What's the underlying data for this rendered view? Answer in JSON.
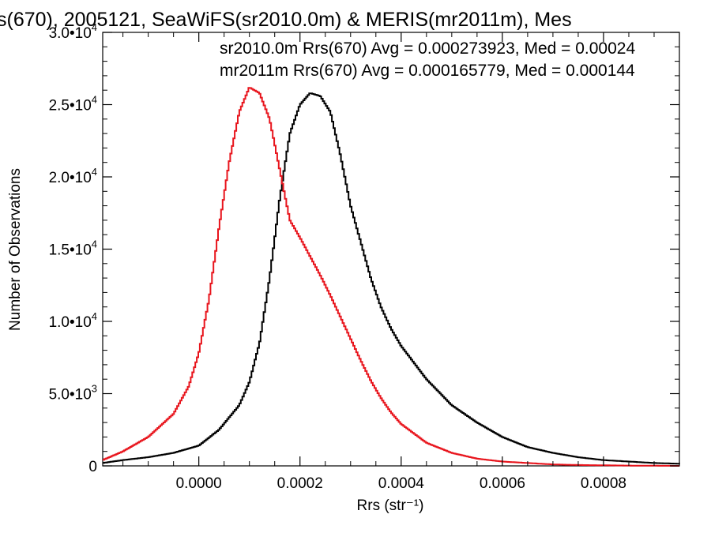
{
  "chart_data": {
    "type": "line",
    "title": "s(670), 2005121, SeaWiFS(sr2010.0m) & MERIS(mr2011m), Mes",
    "xlabel": "Rrs (str⁻¹)",
    "ylabel": "Number of Observations",
    "xlim": [
      -0.00019,
      0.00095
    ],
    "ylim": [
      0,
      30000
    ],
    "grid": false,
    "x_ticks": [
      0.0,
      0.0002,
      0.0004,
      0.0006,
      0.0008
    ],
    "x_tick_labels": [
      "0.0000",
      "0.0002",
      "0.0004",
      "0.0006",
      "0.0008"
    ],
    "y_ticks": [
      0,
      5000,
      10000,
      15000,
      20000,
      25000,
      30000
    ],
    "y_tick_labels": [
      {
        "mant": "0",
        "exp": ""
      },
      {
        "mant": "5.0•10",
        "exp": "3"
      },
      {
        "mant": "1.0•10",
        "exp": "4"
      },
      {
        "mant": "1.5•10",
        "exp": "4"
      },
      {
        "mant": "2.0•10",
        "exp": "4"
      },
      {
        "mant": "2.5•10",
        "exp": "4"
      },
      {
        "mant": "3.0•10",
        "exp": "4"
      }
    ],
    "annotations": [
      {
        "text": "sr2010.0m Rrs(670) Avg = 0.000273923, Med = 0.00024",
        "color": "#000000"
      },
      {
        "text": "mr2011m Rrs(670) Avg = 0.000165779, Med = 0.000144",
        "color": "#e8141c"
      }
    ],
    "series": [
      {
        "color": "#000000",
        "x": [
          -0.00019,
          -0.00015,
          -0.0001,
          -5e-05,
          0.0,
          4e-05,
          8e-05,
          0.0001,
          0.00012,
          0.00014,
          0.00016,
          0.00018,
          0.0002,
          0.00022,
          0.00024,
          0.00026,
          0.00028,
          0.0003,
          0.00032,
          0.00034,
          0.00036,
          0.00038,
          0.0004,
          0.00045,
          0.0005,
          0.00055,
          0.0006,
          0.00065,
          0.0007,
          0.00075,
          0.0008,
          0.00085,
          0.0009,
          0.00095
        ],
        "y": [
          200,
          400,
          600,
          900,
          1400,
          2500,
          4200,
          5800,
          8500,
          13000,
          18500,
          23000,
          25000,
          25800,
          25600,
          24500,
          21500,
          18000,
          15500,
          13000,
          11000,
          9500,
          8300,
          6000,
          4200,
          3000,
          2000,
          1300,
          900,
          600,
          400,
          300,
          200,
          150
        ]
      },
      {
        "color": "#e8141c",
        "x": [
          -0.00019,
          -0.00015,
          -0.0001,
          -5e-05,
          -2e-05,
          0.0,
          2e-05,
          4e-05,
          6e-05,
          8e-05,
          0.0001,
          0.00012,
          0.00014,
          0.00016,
          0.00018,
          0.0002,
          0.00022,
          0.00024,
          0.00026,
          0.00028,
          0.0003,
          0.00032,
          0.00034,
          0.00036,
          0.00038,
          0.0004,
          0.00045,
          0.0005,
          0.00055,
          0.0006,
          0.00065,
          0.0007,
          0.00075,
          0.0008,
          0.00085,
          0.0009,
          0.00095
        ],
        "y": [
          400,
          1000,
          2000,
          3600,
          5500,
          7800,
          11500,
          16500,
          21000,
          24500,
          26200,
          25800,
          24000,
          20500,
          17000,
          15800,
          14500,
          13200,
          11800,
          10300,
          8800,
          7300,
          5900,
          4700,
          3700,
          2900,
          1600,
          900,
          500,
          300,
          200,
          100,
          60,
          40,
          20,
          10,
          0
        ]
      }
    ]
  }
}
